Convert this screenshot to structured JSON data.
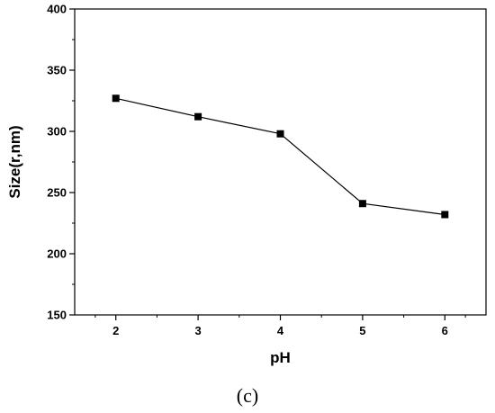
{
  "chart_data": {
    "type": "line",
    "title": "",
    "xlabel": "pH",
    "ylabel": "Size(r,nm)",
    "panel_label": "(c)",
    "x": [
      2,
      3,
      4,
      5,
      6
    ],
    "y": [
      327,
      312,
      298,
      241,
      232
    ],
    "xlim": [
      1.5,
      6.5
    ],
    "ylim": [
      150,
      400
    ],
    "x_ticks": [
      2,
      3,
      4,
      5,
      6
    ],
    "y_ticks": [
      150,
      200,
      250,
      300,
      350,
      400
    ],
    "grid": false,
    "legend": "none",
    "marker": "square",
    "color": "#000000"
  }
}
